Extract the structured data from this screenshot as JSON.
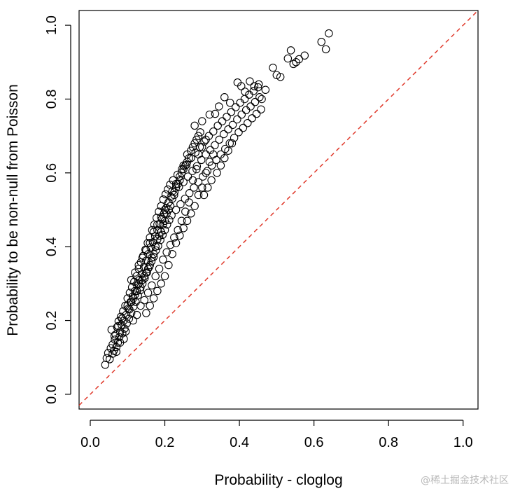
{
  "chart_data": {
    "type": "scatter",
    "xlabel": "Probability - cloglog",
    "ylabel": "Probability to be non-null from Poisson",
    "xlim": [
      -0.03,
      1.04
    ],
    "ylim": [
      -0.04,
      1.04
    ],
    "x_ticks": [
      "0.0",
      "0.2",
      "0.4",
      "0.6",
      "0.8",
      "1.0"
    ],
    "y_ticks": [
      "0.0",
      "0.2",
      "0.4",
      "0.6",
      "0.8",
      "1.0"
    ],
    "marker": "open-circle",
    "reference_line": {
      "from": [
        0,
        0
      ],
      "to": [
        1,
        1
      ],
      "style": "dashed",
      "color": "#e0392b"
    },
    "grid": false,
    "legend": "none",
    "points": [
      [
        0.04,
        0.08
      ],
      [
        0.044,
        0.098
      ],
      [
        0.048,
        0.112
      ],
      [
        0.052,
        0.095
      ],
      [
        0.055,
        0.125
      ],
      [
        0.057,
        0.175
      ],
      [
        0.06,
        0.135
      ],
      [
        0.063,
        0.118
      ],
      [
        0.066,
        0.148
      ],
      [
        0.068,
        0.162
      ],
      [
        0.07,
        0.128
      ],
      [
        0.072,
        0.182
      ],
      [
        0.074,
        0.14
      ],
      [
        0.076,
        0.198
      ],
      [
        0.078,
        0.155
      ],
      [
        0.08,
        0.17
      ],
      [
        0.082,
        0.21
      ],
      [
        0.084,
        0.188
      ],
      [
        0.086,
        0.165
      ],
      [
        0.088,
        0.225
      ],
      [
        0.09,
        0.2
      ],
      [
        0.092,
        0.178
      ],
      [
        0.094,
        0.24
      ],
      [
        0.096,
        0.215
      ],
      [
        0.098,
        0.192
      ],
      [
        0.1,
        0.26
      ],
      [
        0.102,
        0.232
      ],
      [
        0.104,
        0.205
      ],
      [
        0.106,
        0.275
      ],
      [
        0.108,
        0.25
      ],
      [
        0.11,
        0.22
      ],
      [
        0.112,
        0.29
      ],
      [
        0.114,
        0.265
      ],
      [
        0.116,
        0.238
      ],
      [
        0.118,
        0.305
      ],
      [
        0.12,
        0.28
      ],
      [
        0.122,
        0.25
      ],
      [
        0.124,
        0.32
      ],
      [
        0.126,
        0.295
      ],
      [
        0.128,
        0.268
      ],
      [
        0.13,
        0.34
      ],
      [
        0.132,
        0.31
      ],
      [
        0.134,
        0.282
      ],
      [
        0.136,
        0.358
      ],
      [
        0.138,
        0.325
      ],
      [
        0.14,
        0.3
      ],
      [
        0.142,
        0.375
      ],
      [
        0.144,
        0.345
      ],
      [
        0.146,
        0.315
      ],
      [
        0.148,
        0.392
      ],
      [
        0.15,
        0.362
      ],
      [
        0.152,
        0.33
      ],
      [
        0.154,
        0.41
      ],
      [
        0.156,
        0.38
      ],
      [
        0.158,
        0.345
      ],
      [
        0.16,
        0.425
      ],
      [
        0.162,
        0.398
      ],
      [
        0.164,
        0.36
      ],
      [
        0.166,
        0.445
      ],
      [
        0.168,
        0.412
      ],
      [
        0.17,
        0.372
      ],
      [
        0.172,
        0.46
      ],
      [
        0.174,
        0.428
      ],
      [
        0.176,
        0.39
      ],
      [
        0.178,
        0.478
      ],
      [
        0.18,
        0.445
      ],
      [
        0.182,
        0.402
      ],
      [
        0.184,
        0.495
      ],
      [
        0.186,
        0.462
      ],
      [
        0.188,
        0.418
      ],
      [
        0.19,
        0.51
      ],
      [
        0.192,
        0.475
      ],
      [
        0.194,
        0.432
      ],
      [
        0.196,
        0.528
      ],
      [
        0.198,
        0.49
      ],
      [
        0.2,
        0.445
      ],
      [
        0.202,
        0.542
      ],
      [
        0.204,
        0.505
      ],
      [
        0.206,
        0.46
      ],
      [
        0.208,
        0.555
      ],
      [
        0.21,
        0.52
      ],
      [
        0.212,
        0.472
      ],
      [
        0.214,
        0.568
      ],
      [
        0.216,
        0.535
      ],
      [
        0.218,
        0.485
      ],
      [
        0.222,
        0.58
      ],
      [
        0.226,
        0.548
      ],
      [
        0.23,
        0.5
      ],
      [
        0.234,
        0.595
      ],
      [
        0.238,
        0.562
      ],
      [
        0.242,
        0.515
      ],
      [
        0.246,
        0.61
      ],
      [
        0.25,
        0.575
      ],
      [
        0.254,
        0.53
      ],
      [
        0.258,
        0.622
      ],
      [
        0.262,
        0.59
      ],
      [
        0.266,
        0.545
      ],
      [
        0.27,
        0.64
      ],
      [
        0.274,
        0.605
      ],
      [
        0.278,
        0.56
      ],
      [
        0.282,
        0.655
      ],
      [
        0.286,
        0.618
      ],
      [
        0.29,
        0.575
      ],
      [
        0.294,
        0.67
      ],
      [
        0.298,
        0.635
      ],
      [
        0.302,
        0.59
      ],
      [
        0.306,
        0.685
      ],
      [
        0.31,
        0.65
      ],
      [
        0.314,
        0.605
      ],
      [
        0.318,
        0.7
      ],
      [
        0.322,
        0.662
      ],
      [
        0.326,
        0.62
      ],
      [
        0.33,
        0.712
      ],
      [
        0.334,
        0.675
      ],
      [
        0.338,
        0.635
      ],
      [
        0.342,
        0.728
      ],
      [
        0.346,
        0.69
      ],
      [
        0.35,
        0.65
      ],
      [
        0.354,
        0.74
      ],
      [
        0.358,
        0.705
      ],
      [
        0.362,
        0.665
      ],
      [
        0.366,
        0.752
      ],
      [
        0.37,
        0.718
      ],
      [
        0.374,
        0.68
      ],
      [
        0.378,
        0.765
      ],
      [
        0.382,
        0.73
      ],
      [
        0.386,
        0.695
      ],
      [
        0.39,
        0.778
      ],
      [
        0.394,
        0.745
      ],
      [
        0.398,
        0.71
      ],
      [
        0.402,
        0.79
      ],
      [
        0.406,
        0.758
      ],
      [
        0.41,
        0.722
      ],
      [
        0.414,
        0.8
      ],
      [
        0.418,
        0.77
      ],
      [
        0.422,
        0.735
      ],
      [
        0.426,
        0.812
      ],
      [
        0.43,
        0.78
      ],
      [
        0.434,
        0.748
      ],
      [
        0.438,
        0.822
      ],
      [
        0.442,
        0.792
      ],
      [
        0.446,
        0.76
      ],
      [
        0.45,
        0.832
      ],
      [
        0.454,
        0.805
      ],
      [
        0.458,
        0.772
      ],
      [
        0.28,
        0.728
      ],
      [
        0.3,
        0.74
      ],
      [
        0.32,
        0.758
      ],
      [
        0.335,
        0.76
      ],
      [
        0.345,
        0.78
      ],
      [
        0.36,
        0.805
      ],
      [
        0.375,
        0.79
      ],
      [
        0.395,
        0.845
      ],
      [
        0.405,
        0.835
      ],
      [
        0.415,
        0.82
      ],
      [
        0.428,
        0.848
      ],
      [
        0.44,
        0.835
      ],
      [
        0.452,
        0.84
      ],
      [
        0.46,
        0.8
      ],
      [
        0.47,
        0.825
      ],
      [
        0.49,
        0.885
      ],
      [
        0.5,
        0.865
      ],
      [
        0.51,
        0.86
      ],
      [
        0.53,
        0.91
      ],
      [
        0.538,
        0.932
      ],
      [
        0.545,
        0.895
      ],
      [
        0.552,
        0.9
      ],
      [
        0.56,
        0.908
      ],
      [
        0.575,
        0.918
      ],
      [
        0.62,
        0.955
      ],
      [
        0.632,
        0.935
      ],
      [
        0.64,
        0.978
      ],
      [
        0.1,
        0.24
      ],
      [
        0.105,
        0.23
      ],
      [
        0.11,
        0.25
      ],
      [
        0.115,
        0.26
      ],
      [
        0.12,
        0.27
      ],
      [
        0.125,
        0.28
      ],
      [
        0.13,
        0.3
      ],
      [
        0.135,
        0.29
      ],
      [
        0.14,
        0.31
      ],
      [
        0.145,
        0.32
      ],
      [
        0.15,
        0.33
      ],
      [
        0.155,
        0.34
      ],
      [
        0.16,
        0.35
      ],
      [
        0.165,
        0.37
      ],
      [
        0.17,
        0.38
      ],
      [
        0.175,
        0.4
      ],
      [
        0.18,
        0.42
      ],
      [
        0.185,
        0.43
      ],
      [
        0.19,
        0.44
      ],
      [
        0.195,
        0.46
      ],
      [
        0.2,
        0.47
      ],
      [
        0.205,
        0.49
      ],
      [
        0.21,
        0.5
      ],
      [
        0.215,
        0.51
      ],
      [
        0.22,
        0.53
      ],
      [
        0.225,
        0.54
      ],
      [
        0.23,
        0.56
      ],
      [
        0.235,
        0.57
      ],
      [
        0.24,
        0.58
      ],
      [
        0.245,
        0.6
      ],
      [
        0.25,
        0.61
      ],
      [
        0.255,
        0.62
      ],
      [
        0.26,
        0.63
      ],
      [
        0.265,
        0.64
      ],
      [
        0.27,
        0.66
      ],
      [
        0.275,
        0.67
      ],
      [
        0.28,
        0.68
      ],
      [
        0.285,
        0.69
      ],
      [
        0.29,
        0.7
      ],
      [
        0.295,
        0.71
      ],
      [
        0.15,
        0.22
      ],
      [
        0.16,
        0.24
      ],
      [
        0.17,
        0.26
      ],
      [
        0.18,
        0.28
      ],
      [
        0.19,
        0.3
      ],
      [
        0.2,
        0.32
      ],
      [
        0.21,
        0.35
      ],
      [
        0.22,
        0.38
      ],
      [
        0.23,
        0.41
      ],
      [
        0.24,
        0.43
      ],
      [
        0.25,
        0.45
      ],
      [
        0.26,
        0.47
      ],
      [
        0.27,
        0.49
      ],
      [
        0.28,
        0.51
      ],
      [
        0.29,
        0.54
      ],
      [
        0.3,
        0.56
      ],
      [
        0.06,
        0.11
      ],
      [
        0.07,
        0.115
      ],
      [
        0.08,
        0.14
      ],
      [
        0.09,
        0.15
      ],
      [
        0.095,
        0.17
      ],
      [
        0.085,
        0.205
      ],
      [
        0.075,
        0.185
      ],
      [
        0.065,
        0.158
      ],
      [
        0.115,
        0.2
      ],
      [
        0.125,
        0.215
      ],
      [
        0.135,
        0.24
      ],
      [
        0.145,
        0.255
      ],
      [
        0.155,
        0.275
      ],
      [
        0.165,
        0.295
      ],
      [
        0.175,
        0.32
      ],
      [
        0.185,
        0.34
      ],
      [
        0.195,
        0.365
      ],
      [
        0.205,
        0.385
      ],
      [
        0.215,
        0.405
      ],
      [
        0.225,
        0.425
      ],
      [
        0.235,
        0.445
      ],
      [
        0.245,
        0.47
      ],
      [
        0.255,
        0.495
      ],
      [
        0.265,
        0.52
      ],
      [
        0.11,
        0.31
      ],
      [
        0.12,
        0.33
      ],
      [
        0.13,
        0.35
      ],
      [
        0.14,
        0.37
      ],
      [
        0.15,
        0.39
      ],
      [
        0.16,
        0.41
      ],
      [
        0.17,
        0.44
      ],
      [
        0.18,
        0.46
      ],
      [
        0.19,
        0.48
      ],
      [
        0.2,
        0.5
      ],
      [
        0.21,
        0.52
      ],
      [
        0.22,
        0.55
      ],
      [
        0.23,
        0.57
      ],
      [
        0.24,
        0.59
      ],
      [
        0.25,
        0.62
      ],
      [
        0.26,
        0.65
      ],
      [
        0.31,
        0.6
      ],
      [
        0.32,
        0.63
      ],
      [
        0.33,
        0.65
      ],
      [
        0.34,
        0.6
      ],
      [
        0.35,
        0.62
      ],
      [
        0.36,
        0.64
      ],
      [
        0.37,
        0.66
      ],
      [
        0.38,
        0.68
      ],
      [
        0.305,
        0.54
      ],
      [
        0.315,
        0.56
      ],
      [
        0.325,
        0.58
      ],
      [
        0.3,
        0.67
      ],
      [
        0.31,
        0.69
      ],
      [
        0.29,
        0.65
      ],
      [
        0.285,
        0.61
      ],
      [
        0.275,
        0.58
      ]
    ]
  },
  "watermark": "@稀土掘金技术社区"
}
